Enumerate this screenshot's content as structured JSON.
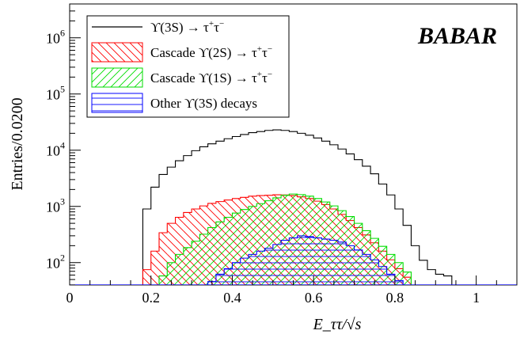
{
  "chart_data": {
    "type": "histogram",
    "xlabel": "E_ττ/√s",
    "ylabel": "Entries/0.0200",
    "xlim": [
      0,
      1.1
    ],
    "ylim": [
      40,
      4000000
    ],
    "yscale": "log",
    "grid": false,
    "legend_position": "top-left",
    "bin_width": 0.02,
    "x_ticks": [
      "0",
      "0.2",
      "0.4",
      "0.6",
      "0.8",
      "1"
    ],
    "x_tick_values": [
      0,
      0.2,
      0.4,
      0.6,
      0.8,
      1.0
    ],
    "y_ticks": [
      {
        "base": "10",
        "exp": "2",
        "value": 100
      },
      {
        "base": "10",
        "exp": "3",
        "value": 1000
      },
      {
        "base": "10",
        "exp": "4",
        "value": 10000
      },
      {
        "base": "10",
        "exp": "5",
        "value": 100000
      },
      {
        "base": "10",
        "exp": "6",
        "value": 1000000
      }
    ],
    "watermark": "BABAR",
    "series": [
      {
        "name": "ϒ(3S) → τ⁺τ⁻",
        "legend_main": "ϒ(3S) → τ",
        "legend_sup1": "+",
        "legend_mid": "τ",
        "legend_sup2": "−",
        "style": "line",
        "color": "#000000",
        "bins": [
          [
            0.16,
            40
          ],
          [
            0.18,
            900
          ],
          [
            0.2,
            2200
          ],
          [
            0.22,
            3700
          ],
          [
            0.24,
            5000
          ],
          [
            0.26,
            6500
          ],
          [
            0.28,
            8000
          ],
          [
            0.3,
            9800
          ],
          [
            0.32,
            11500
          ],
          [
            0.34,
            13000
          ],
          [
            0.36,
            14500
          ],
          [
            0.38,
            16000
          ],
          [
            0.4,
            17500
          ],
          [
            0.42,
            19000
          ],
          [
            0.44,
            20500
          ],
          [
            0.46,
            21500
          ],
          [
            0.48,
            22500
          ],
          [
            0.5,
            23000
          ],
          [
            0.52,
            22500
          ],
          [
            0.54,
            21500
          ],
          [
            0.56,
            20000
          ],
          [
            0.58,
            18500
          ],
          [
            0.6,
            16500
          ],
          [
            0.62,
            14500
          ],
          [
            0.64,
            12500
          ],
          [
            0.66,
            10500
          ],
          [
            0.68,
            8600
          ],
          [
            0.7,
            6800
          ],
          [
            0.72,
            5200
          ],
          [
            0.74,
            3800
          ],
          [
            0.76,
            2500
          ],
          [
            0.78,
            1600
          ],
          [
            0.8,
            900
          ],
          [
            0.82,
            460
          ],
          [
            0.84,
            200
          ],
          [
            0.86,
            110
          ],
          [
            0.88,
            75
          ],
          [
            0.9,
            62
          ],
          [
            0.92,
            58
          ],
          [
            0.94,
            40
          ]
        ]
      },
      {
        "name": "Cascade ϒ(2S) → τ⁺τ⁻",
        "legend_main": "Cascade ϒ(2S) → τ",
        "legend_sup1": "+",
        "legend_mid": "τ",
        "legend_sup2": "−",
        "style": "hatch-diag-down",
        "color": "#ff0000",
        "bins": [
          [
            0.18,
            75
          ],
          [
            0.2,
            160
          ],
          [
            0.22,
            340
          ],
          [
            0.24,
            500
          ],
          [
            0.26,
            640
          ],
          [
            0.28,
            780
          ],
          [
            0.3,
            900
          ],
          [
            0.32,
            1020
          ],
          [
            0.34,
            1130
          ],
          [
            0.36,
            1220
          ],
          [
            0.38,
            1300
          ],
          [
            0.4,
            1380
          ],
          [
            0.42,
            1450
          ],
          [
            0.44,
            1520
          ],
          [
            0.46,
            1560
          ],
          [
            0.48,
            1580
          ],
          [
            0.5,
            1610
          ],
          [
            0.52,
            1600
          ],
          [
            0.54,
            1560
          ],
          [
            0.56,
            1480
          ],
          [
            0.58,
            1380
          ],
          [
            0.6,
            1240
          ],
          [
            0.62,
            1080
          ],
          [
            0.64,
            900
          ],
          [
            0.66,
            720
          ],
          [
            0.68,
            560
          ],
          [
            0.7,
            420
          ],
          [
            0.72,
            310
          ],
          [
            0.74,
            225
          ],
          [
            0.76,
            160
          ],
          [
            0.78,
            112
          ],
          [
            0.8,
            78
          ],
          [
            0.82,
            55
          ],
          [
            0.84,
            40
          ]
        ]
      },
      {
        "name": "Cascade ϒ(1S) → τ⁺τ⁻",
        "legend_main": "Cascade ϒ(1S) → τ",
        "legend_sup1": "+",
        "legend_mid": "τ",
        "legend_sup2": "−",
        "style": "hatch-diag-up",
        "color": "#00ff00",
        "bins": [
          [
            0.22,
            58
          ],
          [
            0.24,
            100
          ],
          [
            0.26,
            140
          ],
          [
            0.28,
            185
          ],
          [
            0.3,
            240
          ],
          [
            0.32,
            320
          ],
          [
            0.34,
            420
          ],
          [
            0.36,
            530
          ],
          [
            0.38,
            640
          ],
          [
            0.4,
            760
          ],
          [
            0.42,
            880
          ],
          [
            0.44,
            1000
          ],
          [
            0.46,
            1120
          ],
          [
            0.48,
            1260
          ],
          [
            0.5,
            1420
          ],
          [
            0.52,
            1580
          ],
          [
            0.54,
            1660
          ],
          [
            0.56,
            1620
          ],
          [
            0.58,
            1520
          ],
          [
            0.6,
            1380
          ],
          [
            0.62,
            1200
          ],
          [
            0.64,
            1020
          ],
          [
            0.66,
            840
          ],
          [
            0.68,
            660
          ],
          [
            0.7,
            500
          ],
          [
            0.72,
            370
          ],
          [
            0.74,
            270
          ],
          [
            0.76,
            195
          ],
          [
            0.78,
            140
          ],
          [
            0.8,
            100
          ],
          [
            0.82,
            68
          ],
          [
            0.84,
            40
          ]
        ]
      },
      {
        "name": "Other ϒ(3S) decays",
        "legend_main": "Other ϒ(3S) decays",
        "style": "hatch-horizontal",
        "color": "#0000ff",
        "bins": [
          [
            0.32,
            40
          ],
          [
            0.34,
            46
          ],
          [
            0.36,
            62
          ],
          [
            0.38,
            78
          ],
          [
            0.4,
            100
          ],
          [
            0.42,
            120
          ],
          [
            0.44,
            140
          ],
          [
            0.46,
            160
          ],
          [
            0.48,
            180
          ],
          [
            0.5,
            210
          ],
          [
            0.52,
            250
          ],
          [
            0.54,
            275
          ],
          [
            0.56,
            300
          ],
          [
            0.58,
            290
          ],
          [
            0.6,
            275
          ],
          [
            0.62,
            262
          ],
          [
            0.64,
            250
          ],
          [
            0.66,
            232
          ],
          [
            0.68,
            200
          ],
          [
            0.7,
            168
          ],
          [
            0.72,
            140
          ],
          [
            0.74,
            112
          ],
          [
            0.76,
            85
          ],
          [
            0.78,
            62
          ],
          [
            0.8,
            48
          ],
          [
            0.82,
            40
          ]
        ]
      }
    ]
  }
}
